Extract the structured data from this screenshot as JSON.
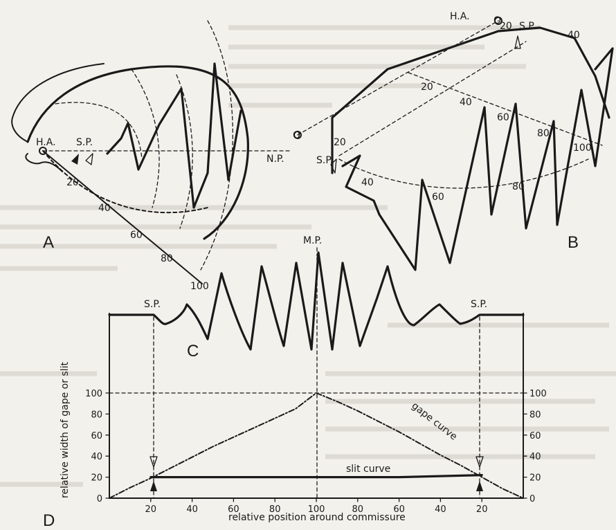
{
  "panels": {
    "a": {
      "label": "A",
      "ha": "H.A.",
      "sp": "S.P.",
      "np": "N.P.",
      "ticks": [
        "20",
        "40",
        "60",
        "80",
        "100"
      ]
    },
    "b": {
      "label": "B",
      "ha": "H.A.",
      "o_top": "O",
      "o_left": "O",
      "sp_top": "S.P.",
      "sp_left": "S.P.",
      "ticks_top": [
        "20",
        "40"
      ],
      "ticks_left": [
        "20",
        "40",
        "60"
      ],
      "ticks_mid": [
        "20",
        "40",
        "60",
        "80",
        "100"
      ],
      "ticks_right": [
        "80"
      ]
    },
    "c": {
      "label": "C",
      "sp_left": "S.P.",
      "mp": "M.P.",
      "sp_right": "S.P."
    },
    "d": {
      "label": "D"
    }
  },
  "chart_data": {
    "type": "line",
    "title": "",
    "xlabel": "relative position around commissure",
    "ylabel": "relative width of gape or slit",
    "x_ticks": [
      "20",
      "40",
      "60",
      "80",
      "100",
      "80",
      "60",
      "40",
      "20"
    ],
    "y_ticks": [
      "0",
      "20",
      "40",
      "60",
      "80",
      "100"
    ],
    "ylim": [
      0,
      100
    ],
    "series": [
      {
        "name": "gape curve",
        "x": [
          0,
          10,
          20,
          30,
          40,
          50,
          60,
          70,
          80,
          90,
          100,
          110,
          120,
          130,
          140,
          150,
          160,
          170,
          180,
          190,
          200
        ],
        "values": [
          0,
          10,
          19,
          29,
          39,
          49,
          58,
          67,
          76,
          85,
          100,
          92,
          83,
          73,
          63,
          52,
          41,
          31,
          20,
          9,
          0
        ]
      },
      {
        "name": "slit curve",
        "x": [
          20,
          40,
          60,
          80,
          100,
          120,
          140,
          160,
          180
        ],
        "values": [
          20,
          20,
          20,
          20,
          20,
          20,
          20,
          21,
          22
        ]
      }
    ]
  }
}
